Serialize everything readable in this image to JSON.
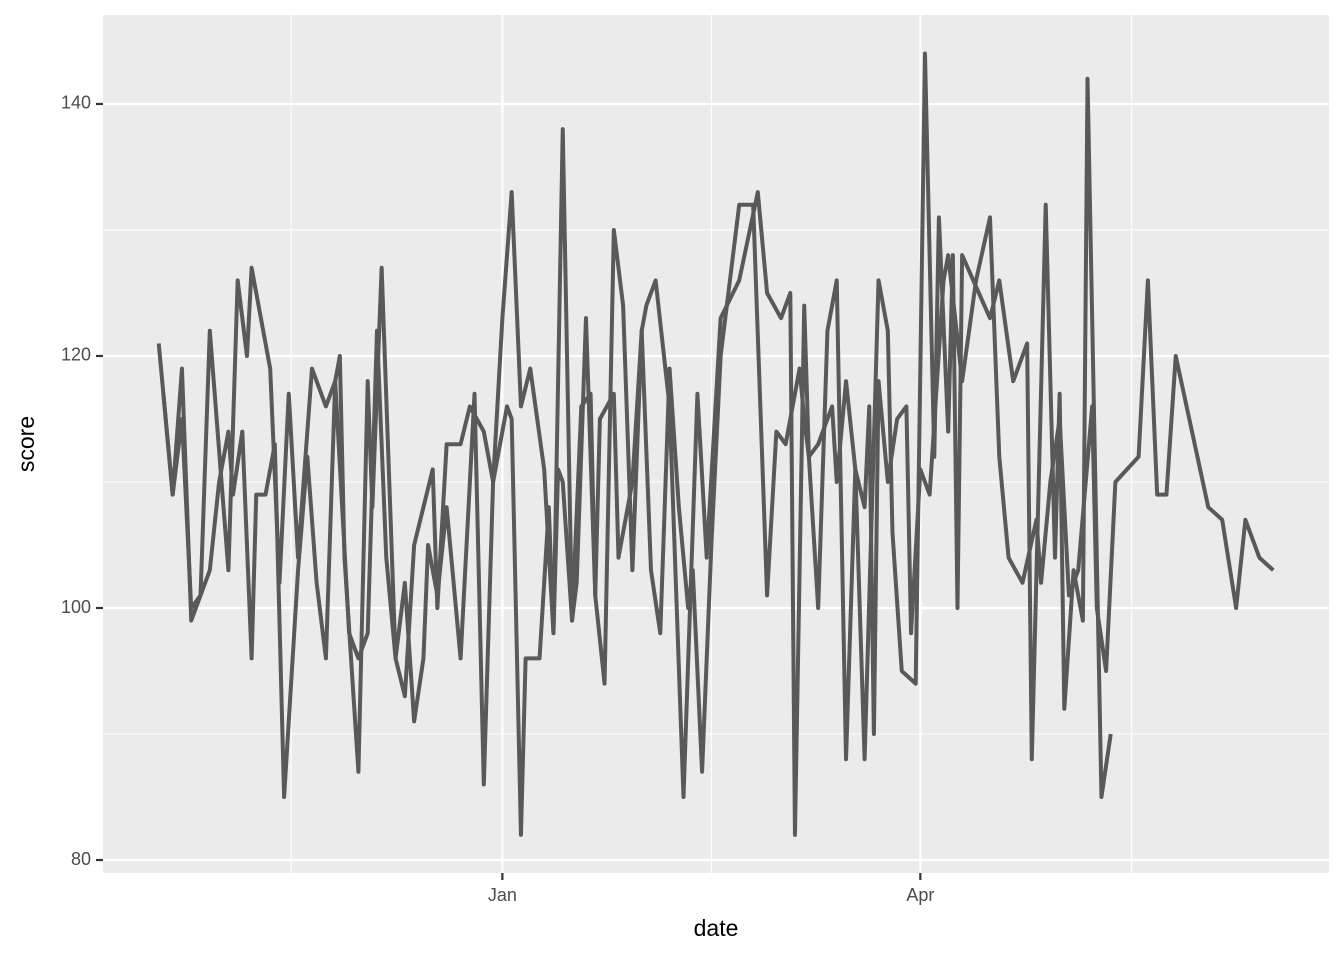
{
  "chart_data": {
    "type": "line",
    "x_label": "date",
    "y_label": "score",
    "xlim": [
      -86,
      178
    ],
    "ylim": [
      78.97,
      147.06
    ],
    "xticks": [
      {
        "value": 0,
        "label": "Jan"
      },
      {
        "value": 90,
        "label": "Apr"
      }
    ],
    "xminor": [
      -45.5,
      45,
      135.5
    ],
    "yticks": [
      80,
      100,
      120,
      140
    ],
    "yminor": [
      90,
      110,
      130
    ],
    "grid": true,
    "series": [
      {
        "color": "#595959",
        "x": [
          -74,
          -71,
          -69,
          -67,
          -65,
          -63,
          -59,
          -57,
          -55,
          -54,
          -50,
          -48,
          -46,
          -44,
          -41,
          -38,
          -36,
          -35,
          -34,
          -31,
          -29,
          -28,
          -26,
          -23,
          -21,
          -19,
          -17,
          -16,
          -14,
          -12,
          -9,
          -6,
          -4,
          -2,
          0,
          2,
          4,
          6,
          9,
          11,
          13,
          15,
          16,
          18,
          20,
          22,
          24,
          26,
          28,
          30,
          31,
          33,
          36,
          39,
          42,
          44,
          47,
          51,
          55,
          57,
          60,
          62,
          63,
          65,
          66,
          68,
          70,
          72,
          74,
          76,
          78,
          81,
          83,
          84,
          86,
          89,
          91,
          93,
          94,
          96,
          97,
          98,
          99,
          105,
          107,
          110,
          113,
          114,
          117,
          119,
          120,
          121,
          123,
          125,
          126,
          129,
          131
        ],
        "values": [
          121,
          109,
          119,
          99,
          101,
          122,
          103,
          126,
          120,
          127,
          119,
          102,
          117,
          104,
          119,
          116,
          118,
          120,
          104,
          87,
          118,
          108,
          127,
          96,
          102,
          91,
          96,
          105,
          101,
          108,
          96,
          117,
          86,
          110,
          123,
          133,
          116,
          119,
          111,
          98,
          138,
          99,
          102,
          123,
          101,
          94,
          130,
          124,
          103,
          122,
          124,
          126,
          116,
          85,
          117,
          104,
          123,
          126,
          133,
          125,
          123,
          125,
          82,
          124,
          112,
          100,
          122,
          126,
          88,
          111,
          88,
          126,
          122,
          106,
          95,
          94,
          144,
          112,
          131,
          114,
          128,
          100,
          128,
          123,
          126,
          118,
          121,
          88,
          132,
          104,
          117,
          92,
          103,
          99,
          142,
          85,
          90
        ]
      },
      {
        "color": "#595959",
        "x": [
          -73,
          -71,
          -69,
          -67,
          -65,
          -63,
          -61,
          -59,
          -58,
          -56,
          -54,
          -53,
          -51,
          -49,
          -47,
          -44,
          -42,
          -40,
          -38,
          -36,
          -33,
          -31,
          -29,
          -27,
          -25,
          -23,
          -21,
          -19,
          -15,
          -14,
          -12,
          -9,
          -7,
          -4,
          -2,
          1,
          2,
          4,
          5,
          8,
          10,
          11,
          12,
          13,
          15,
          17,
          19,
          20,
          21,
          24,
          25,
          28,
          30,
          32,
          34,
          36,
          38,
          40,
          41,
          43,
          45,
          47,
          51,
          54,
          57,
          59,
          61,
          64,
          65,
          66,
          68,
          71,
          72,
          74,
          76,
          78,
          79,
          80,
          81,
          83,
          85,
          87,
          88,
          90,
          92,
          95,
          96,
          99,
          102,
          105,
          107,
          109,
          112,
          115,
          116,
          118,
          120,
          122,
          124,
          127,
          128,
          130,
          132,
          137,
          139,
          141,
          143,
          145,
          152,
          155,
          158,
          160,
          163,
          166
        ],
        "values": [
          117,
          109,
          115,
          100,
          101,
          103,
          110,
          114,
          109,
          114,
          96,
          109,
          109,
          113,
          85,
          103,
          112,
          102,
          96,
          118,
          98,
          96,
          98,
          122,
          104,
          96,
          93,
          105,
          111,
          100,
          113,
          113,
          116,
          114,
          110,
          116,
          115,
          82,
          96,
          96,
          108,
          98,
          111,
          110,
          99,
          116,
          117,
          101,
          115,
          117,
          104,
          110,
          122,
          103,
          98,
          119,
          108,
          100,
          103,
          87,
          105,
          120,
          132,
          132,
          101,
          114,
          113,
          119,
          115,
          112,
          113,
          116,
          110,
          118,
          111,
          108,
          116,
          90,
          118,
          110,
          115,
          116,
          98,
          111,
          109,
          126,
          128,
          118,
          126,
          131,
          112,
          104,
          102,
          107,
          102,
          110,
          115,
          101,
          103,
          116,
          100,
          95,
          110,
          112,
          126,
          109,
          109,
          120,
          108,
          107,
          100,
          107,
          104,
          103
        ]
      }
    ]
  }
}
